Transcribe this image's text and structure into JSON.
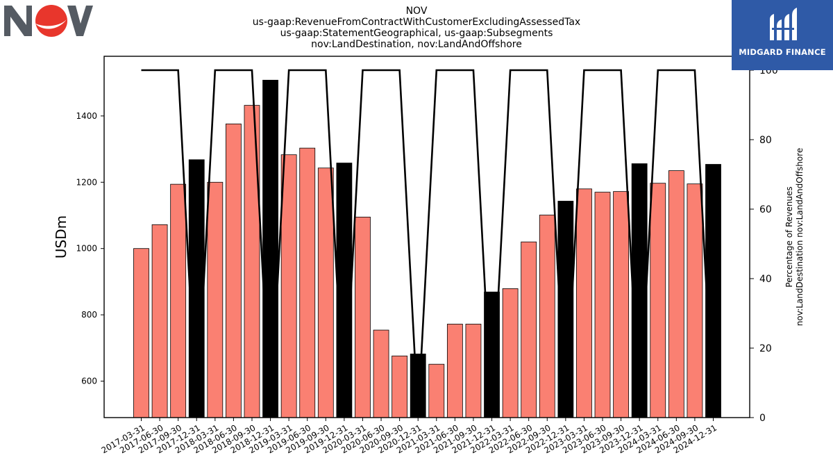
{
  "header": {
    "title_lines": [
      "NOV",
      "us-gaap:RevenueFromContractWithCustomerExcludingAssessedTax",
      "us-gaap:StatementGeographical, us-gaap:Subsegments",
      "nov:LandDestination, nov:LandAndOffshore"
    ]
  },
  "logo": {
    "text": "NOV",
    "brand_color": "#e8362c",
    "letter_color": "#555b63"
  },
  "brand": {
    "text": "MIDGARD FINANCE",
    "background": "#2f5aa7"
  },
  "chart_data": {
    "type": "bar",
    "categories": [
      "2017-03-31",
      "2017-06-30",
      "2017-09-30",
      "2017-12-31",
      "2018-03-31",
      "2018-06-30",
      "2018-09-30",
      "2018-12-31",
      "2019-03-31",
      "2019-06-30",
      "2019-09-30",
      "2019-12-31",
      "2020-03-31",
      "2020-06-30",
      "2020-09-30",
      "2020-12-31",
      "2021-03-31",
      "2021-06-30",
      "2021-09-30",
      "2021-12-31",
      "2022-03-31",
      "2022-06-30",
      "2022-09-30",
      "2022-12-31",
      "2023-03-31",
      "2023-06-30",
      "2023-09-30",
      "2023-12-31",
      "2024-03-31",
      "2024-06-30",
      "2024-09-30",
      "2024-12-31"
    ],
    "values": [
      1000,
      1072,
      1194,
      1268,
      1200,
      1376,
      1432,
      1508,
      1283,
      1303,
      1243,
      1258,
      1095,
      754,
      676,
      682,
      651,
      772,
      772,
      869,
      879,
      1020,
      1101,
      1143,
      1180,
      1170,
      1172,
      1256,
      1197,
      1235,
      1195,
      1254
    ],
    "highlight_categories": [
      "2017-12-31",
      "2018-12-31",
      "2019-12-31",
      "2020-12-31",
      "2021-12-31",
      "2022-12-31",
      "2023-12-31",
      "2024-12-31"
    ],
    "bar_color": "#fa8072",
    "highlight_color": "#000000",
    "ylabel": "USDm",
    "ylim": [
      490,
      1580
    ],
    "yticks": [
      600,
      800,
      1000,
      1200,
      1400
    ],
    "secondary": {
      "type": "line",
      "label_lines": [
        "Percentage of Revenues",
        "nov:LandDestination nov:LandAndOffshore"
      ],
      "values": [
        100,
        100,
        100,
        0,
        100,
        100,
        100,
        0,
        100,
        100,
        100,
        0,
        100,
        100,
        100,
        0,
        100,
        100,
        100,
        0,
        100,
        100,
        100,
        0,
        100,
        100,
        100,
        0,
        100,
        100,
        100,
        0
      ],
      "ylim": [
        0,
        104
      ],
      "yticks": [
        0,
        20,
        40,
        60,
        80,
        100
      ],
      "color": "#000000"
    },
    "grid": false,
    "legend": "none"
  }
}
